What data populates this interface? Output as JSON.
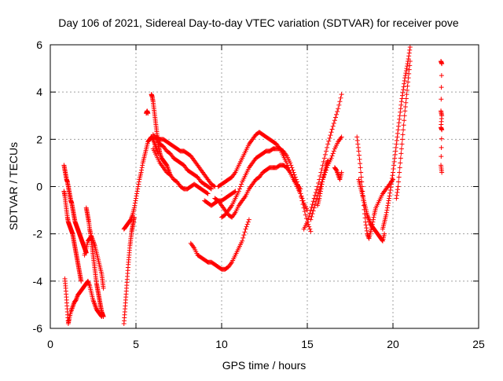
{
  "chart_data": {
    "type": "scatter",
    "title": "Day 106 of 2021, Sidereal Day-to-day VTEC variation (SDTVAR) for receiver pove",
    "xlabel": "GPS time / hours",
    "ylabel": "SDTVAR / TECUs",
    "xlim": [
      0,
      25
    ],
    "ylim": [
      -6,
      6
    ],
    "xticks": [
      0,
      5,
      10,
      15,
      20,
      25
    ],
    "yticks": [
      -6,
      -4,
      -2,
      0,
      2,
      4,
      6
    ],
    "grid": true,
    "marker": "plus",
    "color": "#ff0000",
    "series": [
      {
        "x": [
          0.8,
          0.85,
          0.9,
          0.95,
          1.0,
          1.05,
          1.1,
          1.15,
          1.2,
          1.25,
          1.3,
          1.35,
          1.4,
          1.45,
          1.5,
          1.55,
          1.6,
          1.65,
          1.7,
          1.75,
          1.8,
          1.85,
          1.9,
          1.95,
          2.0,
          2.05,
          2.1
        ],
        "y": [
          0.9,
          0.7,
          0.5,
          0.3,
          0.2,
          0.0,
          -0.2,
          -0.4,
          -0.6,
          -0.7,
          -0.9,
          -1.1,
          -1.3,
          -1.5,
          -1.6,
          -1.7,
          -1.8,
          -1.9,
          -2.0,
          -2.1,
          -2.2,
          -2.3,
          -2.4,
          -2.5,
          -2.6,
          -2.7,
          -2.8
        ]
      },
      {
        "x": [
          0.8,
          0.85,
          0.9,
          0.95,
          1.0,
          1.05,
          1.1,
          1.15,
          1.2,
          1.25,
          1.3,
          1.35,
          1.4,
          1.45,
          1.5,
          1.55,
          1.6,
          1.65,
          1.7,
          1.75,
          1.8
        ],
        "y": [
          -0.2,
          -0.4,
          -0.7,
          -1.0,
          -1.3,
          -1.5,
          -1.6,
          -1.7,
          -1.8,
          -1.9,
          -2.0,
          -2.2,
          -2.4,
          -2.6,
          -2.8,
          -3.0,
          -3.2,
          -3.4,
          -3.6,
          -3.8,
          -4.0
        ]
      },
      {
        "x": [
          0.85,
          0.9,
          0.95,
          1.0,
          1.05,
          1.1,
          1.2,
          1.3,
          1.4,
          1.5,
          1.6,
          1.7,
          1.8,
          1.9,
          2.0,
          2.1,
          2.2,
          2.3,
          2.4,
          2.5,
          2.6,
          2.7,
          2.8,
          2.9,
          3.0
        ],
        "y": [
          -3.9,
          -4.3,
          -4.8,
          -5.3,
          -5.8,
          -5.6,
          -5.3,
          -5.1,
          -4.9,
          -4.8,
          -4.6,
          -4.5,
          -4.4,
          -4.3,
          -4.2,
          -4.1,
          -4.0,
          -4.2,
          -4.5,
          -4.8,
          -5.0,
          -5.2,
          -5.3,
          -5.4,
          -5.5
        ]
      },
      {
        "x": [
          2.1,
          2.15,
          2.2,
          2.25,
          2.3,
          2.35,
          2.4,
          2.45,
          2.5,
          2.55,
          2.6,
          2.65,
          2.7,
          2.75,
          2.8,
          2.85,
          2.9,
          2.95,
          3.0,
          3.05,
          3.1
        ],
        "y": [
          -0.9,
          -1.1,
          -1.3,
          -1.5,
          -1.8,
          -2.0,
          -2.3,
          -2.6,
          -2.9,
          -3.2,
          -3.5,
          -3.8,
          -4.1,
          -4.3,
          -4.5,
          -4.7,
          -4.9,
          -5.1,
          -5.3,
          -5.4,
          -5.5
        ]
      },
      {
        "x": [
          2.0,
          2.1,
          2.2,
          2.3,
          2.4,
          2.5,
          2.6,
          2.7,
          2.8,
          2.9,
          3.0,
          3.05,
          3.1
        ],
        "y": [
          -2.9,
          -2.6,
          -2.3,
          -2.2,
          -2.1,
          -2.3,
          -2.5,
          -2.8,
          -3.1,
          -3.4,
          -3.7,
          -4.0,
          -4.3
        ]
      },
      {
        "x": [
          4.3,
          4.35,
          4.4,
          4.45,
          4.5,
          4.55,
          4.6,
          4.65,
          4.7,
          4.75,
          4.8,
          4.85,
          4.9
        ],
        "y": [
          -5.8,
          -5.3,
          -4.8,
          -4.3,
          -3.8,
          -3.3,
          -2.9,
          -2.5,
          -2.2,
          -1.9,
          -1.7,
          -1.5,
          -1.3
        ]
      },
      {
        "x": [
          4.3,
          4.4,
          4.5,
          4.6,
          4.7,
          4.8,
          4.9,
          5.0,
          5.1,
          5.2,
          5.3,
          5.4,
          5.5,
          5.6,
          5.7,
          5.8,
          5.9,
          6.0,
          6.1,
          6.2,
          6.3
        ],
        "y": [
          -1.8,
          -1.7,
          -1.6,
          -1.5,
          -1.4,
          -1.2,
          -0.9,
          -0.5,
          -0.1,
          0.3,
          0.6,
          1.0,
          1.3,
          1.6,
          1.9,
          2.0,
          2.1,
          2.0,
          1.8,
          1.6,
          1.4
        ]
      },
      {
        "x": [
          5.6,
          5.65,
          5.7
        ],
        "y": [
          3.1,
          3.2,
          3.1
        ]
      },
      {
        "x": [
          5.9,
          5.95,
          6.0,
          6.05,
          6.1,
          6.15,
          6.2,
          6.25,
          6.3,
          6.35,
          6.4,
          6.5,
          6.6,
          6.7,
          6.8,
          6.9,
          7.0
        ],
        "y": [
          3.9,
          3.8,
          3.6,
          3.3,
          3.0,
          2.7,
          2.4,
          2.1,
          1.8,
          1.6,
          1.4,
          1.2,
          1.1,
          1.0,
          0.9,
          0.7,
          0.5
        ]
      },
      {
        "x": [
          6.0,
          6.2,
          6.4,
          6.6,
          6.8,
          7.0,
          7.2,
          7.4,
          7.6,
          7.8,
          8.0,
          8.2,
          8.4,
          8.6,
          8.8,
          9.0,
          9.2,
          9.4
        ],
        "y": [
          2.2,
          2.0,
          1.8,
          1.7,
          1.5,
          1.4,
          1.2,
          1.1,
          1.0,
          0.9,
          0.7,
          0.6,
          0.5,
          0.4,
          0.2,
          0.1,
          0.0,
          -0.1
        ]
      },
      {
        "x": [
          6.0,
          6.2,
          6.4,
          6.6,
          6.8,
          7.0,
          7.2,
          7.4,
          7.6,
          7.8,
          8.0,
          8.2,
          8.4,
          8.6,
          8.8,
          9.0,
          9.2
        ],
        "y": [
          1.6,
          1.3,
          1.0,
          0.8,
          0.6,
          0.5,
          0.3,
          0.2,
          0.0,
          -0.1,
          -0.1,
          0.0,
          0.1,
          0.0,
          -0.1,
          -0.2,
          -0.3
        ]
      },
      {
        "x": [
          6.2,
          6.4,
          6.6,
          6.8,
          7.0,
          7.2,
          7.4,
          7.6,
          7.8,
          8.0,
          8.2,
          8.4,
          8.6,
          8.8,
          9.0,
          9.2,
          9.4,
          9.6
        ],
        "y": [
          2.1,
          2.0,
          2.0,
          1.9,
          1.8,
          1.7,
          1.6,
          1.5,
          1.5,
          1.4,
          1.3,
          1.1,
          0.9,
          0.7,
          0.5,
          0.3,
          0.1,
          0.0
        ]
      },
      {
        "x": [
          9.0,
          9.2,
          9.4,
          9.6,
          9.8,
          10.0,
          10.2,
          10.4,
          10.6,
          10.8
        ],
        "y": [
          -0.6,
          -0.7,
          -0.8,
          -0.7,
          -0.6,
          -0.6,
          -0.5,
          -0.4,
          -0.3,
          -0.2
        ]
      },
      {
        "x": [
          8.2,
          8.4,
          8.6,
          8.8,
          9.0,
          9.2,
          9.4,
          9.6,
          9.8,
          10.0,
          10.2,
          10.4,
          10.6,
          10.8,
          11.0,
          11.2,
          11.4,
          11.6
        ],
        "y": [
          -2.4,
          -2.6,
          -2.9,
          -3.0,
          -3.1,
          -3.2,
          -3.2,
          -3.3,
          -3.4,
          -3.5,
          -3.5,
          -3.4,
          -3.2,
          -2.9,
          -2.6,
          -2.3,
          -1.8,
          -1.4
        ]
      },
      {
        "x": [
          9.6,
          9.8,
          10.0,
          10.2,
          10.4,
          10.6,
          10.8,
          11.0,
          11.2,
          11.4,
          11.6,
          11.8,
          12.0,
          12.2,
          12.4,
          12.6,
          12.8,
          13.0,
          13.2,
          13.4,
          13.6,
          13.8,
          14.0,
          14.2,
          14.4,
          14.6
        ],
        "y": [
          -0.5,
          -0.6,
          -0.8,
          -1.0,
          -1.2,
          -1.3,
          -1.1,
          -0.8,
          -0.6,
          -0.4,
          -0.1,
          0.1,
          0.3,
          0.4,
          0.6,
          0.7,
          0.8,
          0.8,
          0.8,
          0.9,
          0.9,
          0.8,
          0.6,
          0.3,
          0.1,
          -0.1
        ]
      },
      {
        "x": [
          9.8,
          10.0,
          10.2,
          10.4,
          10.6,
          10.8,
          11.0,
          11.2,
          11.4,
          11.6,
          11.8,
          12.0,
          12.2,
          12.4,
          12.6,
          12.8,
          13.0,
          13.2,
          13.4,
          13.6,
          13.8,
          14.0,
          14.2,
          14.4,
          14.6,
          14.8,
          15.0
        ],
        "y": [
          0.0,
          0.1,
          0.2,
          0.3,
          0.4,
          0.6,
          0.9,
          1.2,
          1.5,
          1.8,
          2.0,
          2.2,
          2.3,
          2.2,
          2.1,
          2.0,
          1.9,
          1.8,
          1.6,
          1.3,
          1.0,
          0.6,
          0.3,
          0.0,
          -0.3,
          -0.7,
          -1.0
        ]
      },
      {
        "x": [
          10.0,
          10.2,
          10.4,
          10.6,
          10.8,
          11.0,
          11.2,
          11.4,
          11.6,
          11.8,
          12.0,
          12.2,
          12.4,
          12.6,
          12.8,
          13.0,
          13.2,
          13.4,
          13.6,
          13.8,
          14.0,
          14.2,
          14.4,
          14.6,
          14.8,
          15.0,
          15.2
        ],
        "y": [
          -1.3,
          -1.2,
          -1.0,
          -0.8,
          -0.5,
          -0.2,
          0.2,
          0.5,
          0.8,
          1.0,
          1.2,
          1.3,
          1.4,
          1.5,
          1.5,
          1.6,
          1.6,
          1.6,
          1.5,
          1.3,
          1.0,
          0.6,
          0.2,
          -0.3,
          -0.9,
          -1.5,
          -1.9
        ]
      },
      {
        "x": [
          14.8,
          15.0,
          15.2,
          15.4,
          15.6,
          15.8,
          16.0,
          16.2,
          16.4,
          16.6,
          16.8,
          17.0
        ],
        "y": [
          -1.8,
          -1.5,
          -1.0,
          -0.5,
          0.0,
          0.6,
          1.2,
          1.8,
          2.3,
          2.8,
          3.3,
          3.9
        ]
      },
      {
        "x": [
          15.2,
          15.4,
          15.6,
          15.8,
          16.0,
          16.2,
          16.4,
          16.6,
          16.8,
          17.0
        ],
        "y": [
          -1.4,
          -0.9,
          -0.4,
          0.1,
          0.5,
          0.9,
          1.2,
          1.6,
          1.9,
          2.1
        ]
      },
      {
        "x": [
          15.6,
          15.7,
          15.8,
          15.9,
          16.0,
          16.1,
          16.2
        ],
        "y": [
          -0.8,
          -0.5,
          -0.1,
          0.3,
          0.6,
          0.9,
          1.1
        ]
      },
      {
        "x": [
          16.6,
          16.7,
          16.8,
          16.9,
          17.0
        ],
        "y": [
          0.8,
          0.7,
          0.5,
          0.3,
          0.6
        ]
      },
      {
        "x": [
          17.9,
          18.0,
          18.1,
          18.2,
          18.3,
          18.4,
          18.5,
          18.6,
          18.7,
          18.8,
          18.9,
          19.0,
          19.2,
          19.4,
          19.6,
          19.8,
          20.0
        ],
        "y": [
          2.1,
          1.5,
          0.8,
          0.0,
          -0.8,
          -1.5,
          -2.0,
          -2.2,
          -1.9,
          -1.6,
          -1.2,
          -0.9,
          -0.6,
          -0.3,
          -0.1,
          0.1,
          0.3
        ]
      },
      {
        "x": [
          18.0,
          18.1,
          18.2,
          18.3,
          18.4,
          18.5,
          18.6,
          18.7,
          18.8,
          18.9,
          19.0,
          19.1,
          19.2,
          19.3,
          19.4,
          19.5
        ],
        "y": [
          0.3,
          0.0,
          -0.3,
          -0.6,
          -0.9,
          -1.2,
          -1.4,
          -1.6,
          -1.7,
          -1.8,
          -1.9,
          -2.0,
          -2.1,
          -2.2,
          -2.3,
          -2.0
        ]
      },
      {
        "x": [
          19.4,
          19.5,
          19.6,
          19.7,
          19.8,
          19.9,
          20.0,
          20.1,
          20.2,
          20.3,
          20.4,
          20.5,
          20.6,
          20.7,
          20.8,
          20.9,
          21.0
        ],
        "y": [
          -1.8,
          -1.5,
          -1.2,
          -0.8,
          -0.4,
          0.1,
          0.6,
          1.2,
          1.8,
          2.4,
          3.0,
          3.6,
          4.1,
          4.6,
          5.0,
          5.4,
          5.9
        ]
      },
      {
        "x": [
          20.2,
          20.3,
          20.4,
          20.5,
          20.6,
          20.7,
          20.8,
          20.9,
          21.0
        ],
        "y": [
          -0.5,
          0.0,
          0.8,
          1.6,
          2.4,
          3.2,
          3.9,
          4.6,
          5.3
        ]
      },
      {
        "x": [
          22.8,
          22.85,
          22.8,
          22.85,
          22.8,
          22.85,
          22.8,
          22.85
        ],
        "y": [
          5.3,
          5.2,
          3.2,
          3.0,
          2.5,
          2.4,
          0.9,
          0.6
        ]
      }
    ]
  }
}
